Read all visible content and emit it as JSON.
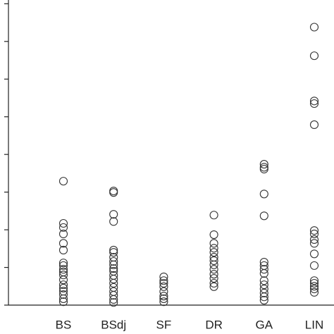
{
  "chart_data": {
    "type": "strip",
    "categories": [
      "BS",
      "BSdj",
      "SF",
      "DR",
      "GA",
      "LIN"
    ],
    "values": [
      [
        3.29,
        2.17,
        2.06,
        1.89,
        1.64,
        1.46,
        1.12,
        1.05,
        0.95,
        0.88,
        0.8,
        0.67,
        0.54,
        0.45,
        0.37,
        0.28,
        0.17,
        0.09
      ],
      [
        3.03,
        2.99,
        2.41,
        2.22,
        1.46,
        1.4,
        1.27,
        1.16,
        1.07,
        0.97,
        0.9,
        0.79,
        0.69,
        0.58,
        0.47,
        0.36,
        0.26,
        0.15,
        0.07
      ],
      [
        0.75,
        0.65,
        0.58,
        0.49,
        0.36,
        0.24,
        0.17,
        0.09
      ],
      [
        2.39,
        1.87,
        1.64,
        1.51,
        1.4,
        1.27,
        1.18,
        1.07,
        0.95,
        0.82,
        0.71,
        0.58,
        0.49
      ],
      [
        3.74,
        3.66,
        3.61,
        2.95,
        2.37,
        1.14,
        1.05,
        0.95,
        0.84,
        0.65,
        0.54,
        0.43,
        0.32,
        0.22,
        0.13
      ],
      [
        7.38,
        6.62,
        5.42,
        5.35,
        4.79,
        1.98,
        1.89,
        1.74,
        1.64,
        1.36,
        1.05,
        0.65,
        0.58,
        0.5,
        0.43,
        0.34
      ]
    ],
    "color": "#333333",
    "ylim": [
      0,
      8.1
    ],
    "yticks": [
      0,
      1,
      2,
      3,
      4,
      5,
      6,
      7,
      8
    ],
    "grid": false
  }
}
